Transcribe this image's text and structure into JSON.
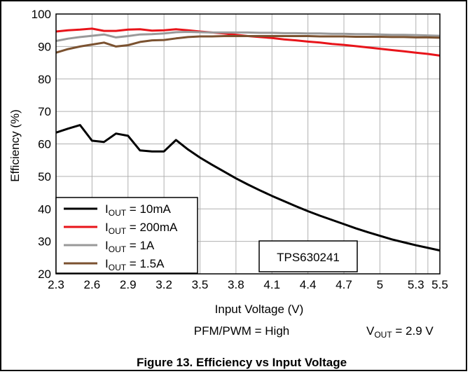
{
  "chart_data": {
    "type": "line",
    "title": "Figure 13. Efficiency vs Input Voltage",
    "xlabel": "Input Voltage (V)",
    "ylabel": "Efficiency (%)",
    "xlim": [
      2.3,
      5.5
    ],
    "ylim": [
      20,
      100
    ],
    "x_ticks": [
      "2.3",
      "2.6",
      "2.9",
      "3.2",
      "3.5",
      "3.8",
      "4.1",
      "4.4",
      "4.7",
      "5",
      "5.3",
      "5.5"
    ],
    "y_ticks": [
      "20",
      "30",
      "40",
      "50",
      "60",
      "70",
      "80",
      "90",
      "100"
    ],
    "grid": true,
    "legend_position": "bottom-left",
    "conditions_left": "PFM/PWM = High",
    "conditions_right": {
      "main": "V",
      "sub": "OUT",
      "rest": " = 2.9 V"
    },
    "device_label": "TPS630241",
    "series": [
      {
        "name": "I_OUT = 10mA",
        "legend": {
          "pre": "I",
          "sub": "OUT",
          "post": " = 10mA"
        },
        "color": "#000000",
        "points": [
          [
            2.3,
            63.5
          ],
          [
            2.4,
            64.7
          ],
          [
            2.5,
            65.8
          ],
          [
            2.6,
            61.0
          ],
          [
            2.7,
            60.6
          ],
          [
            2.8,
            63.2
          ],
          [
            2.9,
            62.5
          ],
          [
            3.0,
            58.0
          ],
          [
            3.1,
            57.7
          ],
          [
            3.2,
            57.7
          ],
          [
            3.3,
            61.2
          ],
          [
            3.4,
            58.3
          ],
          [
            3.5,
            55.8
          ],
          [
            3.6,
            53.6
          ],
          [
            3.7,
            51.5
          ],
          [
            3.8,
            49.4
          ],
          [
            3.9,
            47.5
          ],
          [
            4.0,
            45.7
          ],
          [
            4.1,
            44.0
          ],
          [
            4.2,
            42.4
          ],
          [
            4.3,
            40.8
          ],
          [
            4.4,
            39.3
          ],
          [
            4.5,
            37.9
          ],
          [
            4.6,
            36.6
          ],
          [
            4.7,
            35.3
          ],
          [
            4.8,
            34.0
          ],
          [
            4.9,
            32.8
          ],
          [
            5.0,
            31.7
          ],
          [
            5.1,
            30.6
          ],
          [
            5.2,
            29.7
          ],
          [
            5.3,
            28.8
          ],
          [
            5.4,
            28.0
          ],
          [
            5.5,
            27.2
          ]
        ]
      },
      {
        "name": "I_OUT = 200mA",
        "legend": {
          "pre": "I",
          "sub": "OUT",
          "post": " = 200mA"
        },
        "color": "#e8141a",
        "points": [
          [
            2.3,
            94.6
          ],
          [
            2.4,
            95.0
          ],
          [
            2.5,
            95.2
          ],
          [
            2.6,
            95.5
          ],
          [
            2.7,
            94.8
          ],
          [
            2.8,
            94.8
          ],
          [
            2.9,
            95.2
          ],
          [
            3.0,
            95.3
          ],
          [
            3.1,
            94.9
          ],
          [
            3.2,
            95.0
          ],
          [
            3.3,
            95.3
          ],
          [
            3.4,
            95.0
          ],
          [
            3.5,
            94.6
          ],
          [
            3.6,
            94.3
          ],
          [
            3.7,
            94.0
          ],
          [
            3.8,
            93.6
          ],
          [
            3.9,
            93.2
          ],
          [
            4.0,
            92.9
          ],
          [
            4.1,
            92.6
          ],
          [
            4.2,
            92.2
          ],
          [
            4.3,
            91.9
          ],
          [
            4.4,
            91.5
          ],
          [
            4.5,
            91.2
          ],
          [
            4.6,
            90.8
          ],
          [
            4.7,
            90.5
          ],
          [
            4.8,
            90.1
          ],
          [
            4.9,
            89.7
          ],
          [
            5.0,
            89.3
          ],
          [
            5.1,
            88.9
          ],
          [
            5.2,
            88.5
          ],
          [
            5.3,
            88.1
          ],
          [
            5.4,
            87.7
          ],
          [
            5.5,
            87.2
          ]
        ]
      },
      {
        "name": "I_OUT = 1A",
        "legend": {
          "pre": "I",
          "sub": "OUT",
          "post": " = 1A"
        },
        "color": "#999999",
        "points": [
          [
            2.3,
            91.7
          ],
          [
            2.4,
            92.4
          ],
          [
            2.5,
            92.9
          ],
          [
            2.6,
            93.3
          ],
          [
            2.7,
            93.7
          ],
          [
            2.8,
            92.8
          ],
          [
            2.9,
            93.2
          ],
          [
            3.0,
            93.7
          ],
          [
            3.1,
            93.8
          ],
          [
            3.2,
            94.0
          ],
          [
            3.3,
            94.4
          ],
          [
            3.4,
            94.5
          ],
          [
            3.5,
            94.4
          ],
          [
            3.6,
            94.3
          ],
          [
            3.7,
            94.3
          ],
          [
            3.8,
            94.3
          ],
          [
            3.9,
            94.3
          ],
          [
            4.0,
            94.2
          ],
          [
            4.1,
            94.2
          ],
          [
            4.2,
            94.1
          ],
          [
            4.3,
            94.1
          ],
          [
            4.4,
            94.0
          ],
          [
            4.5,
            94.0
          ],
          [
            4.6,
            93.9
          ],
          [
            4.7,
            93.9
          ],
          [
            4.8,
            93.8
          ],
          [
            4.9,
            93.8
          ],
          [
            5.0,
            93.7
          ],
          [
            5.1,
            93.6
          ],
          [
            5.2,
            93.6
          ],
          [
            5.3,
            93.5
          ],
          [
            5.4,
            93.4
          ],
          [
            5.5,
            93.3
          ]
        ]
      },
      {
        "name": "I_OUT = 1.5A",
        "legend": {
          "pre": "I",
          "sub": "OUT",
          "post": " = 1.5A"
        },
        "color": "#7b5230",
        "points": [
          [
            2.3,
            88.1
          ],
          [
            2.4,
            89.2
          ],
          [
            2.5,
            90.0
          ],
          [
            2.6,
            90.6
          ],
          [
            2.7,
            91.2
          ],
          [
            2.8,
            90.0
          ],
          [
            2.9,
            90.4
          ],
          [
            3.0,
            91.4
          ],
          [
            3.1,
            91.9
          ],
          [
            3.2,
            92.0
          ],
          [
            3.3,
            92.5
          ],
          [
            3.4,
            92.9
          ],
          [
            3.5,
            93.1
          ],
          [
            3.6,
            93.1
          ],
          [
            3.7,
            93.2
          ],
          [
            3.8,
            93.2
          ],
          [
            3.9,
            93.2
          ],
          [
            4.0,
            93.2
          ],
          [
            4.1,
            93.2
          ],
          [
            4.2,
            93.2
          ],
          [
            4.3,
            93.2
          ],
          [
            4.4,
            93.2
          ],
          [
            4.5,
            93.1
          ],
          [
            4.6,
            93.1
          ],
          [
            4.7,
            93.1
          ],
          [
            4.8,
            93.0
          ],
          [
            4.9,
            93.0
          ],
          [
            5.0,
            93.0
          ],
          [
            5.1,
            92.9
          ],
          [
            5.2,
            92.9
          ],
          [
            5.3,
            92.8
          ],
          [
            5.4,
            92.8
          ],
          [
            5.5,
            92.7
          ]
        ]
      }
    ]
  }
}
